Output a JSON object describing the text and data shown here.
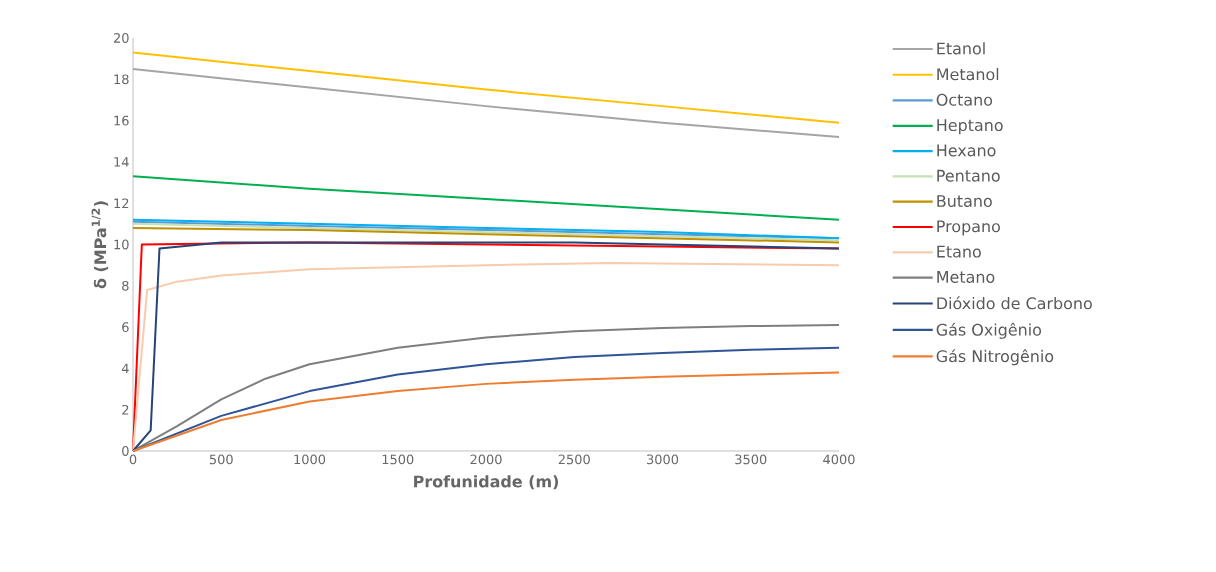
{
  "chart_data": {
    "type": "line",
    "xlabel": "Profunidade (m)",
    "ylabel": "δ (MPa$^{1/2}$)",
    "xlim": [
      0,
      4000
    ],
    "xticks": [
      0,
      500,
      1000,
      1500,
      2000,
      2500,
      3000,
      3500,
      4000
    ],
    "ylim": [
      0,
      20
    ],
    "yticks": [
      0,
      2,
      4,
      6,
      8,
      10,
      12,
      14,
      16,
      18,
      20
    ],
    "grid": false,
    "legend": "right",
    "marker": "none",
    "line_style": "solid",
    "series": [
      {
        "name": "Etanol",
        "color": "#a5a5a5",
        "x": [
          0,
          1000,
          2000,
          3000,
          4000
        ],
        "values": [
          18.5,
          17.6,
          16.7,
          15.9,
          15.2
        ]
      },
      {
        "name": "Metanol",
        "color": "#ffc000",
        "x": [
          0,
          1000,
          2000,
          3000,
          4000
        ],
        "values": [
          19.3,
          18.4,
          17.5,
          16.7,
          15.9
        ]
      },
      {
        "name": "Octano",
        "color": "#5b9bd5",
        "x": [
          0,
          1000,
          2000,
          3000,
          4000
        ],
        "values": [
          11.1,
          10.9,
          10.7,
          10.5,
          10.3
        ]
      },
      {
        "name": "Heptano",
        "color": "#00b050",
        "x": [
          0,
          1000,
          2000,
          3000,
          4000
        ],
        "values": [
          13.3,
          12.7,
          12.2,
          11.7,
          11.2
        ]
      },
      {
        "name": "Hexano",
        "color": "#00b0f0",
        "x": [
          0,
          1000,
          2000,
          3000,
          4000
        ],
        "values": [
          11.2,
          11.0,
          10.8,
          10.6,
          10.3
        ]
      },
      {
        "name": "Pentano",
        "color": "#c5e0b4",
        "x": [
          0,
          1000,
          2000,
          3000,
          4000
        ],
        "values": [
          11.0,
          10.8,
          10.6,
          10.4,
          10.2
        ]
      },
      {
        "name": "Butano",
        "color": "#bf9000",
        "x": [
          0,
          1000,
          2000,
          3000,
          4000
        ],
        "values": [
          10.8,
          10.7,
          10.5,
          10.3,
          10.1
        ]
      },
      {
        "name": "Propano",
        "color": "#ff0000",
        "x": [
          0,
          50,
          1000,
          2000,
          3000,
          4000
        ],
        "values": [
          0,
          10.0,
          10.1,
          10.0,
          9.9,
          9.8
        ]
      },
      {
        "name": "Etano",
        "color": "#f8cbad",
        "x": [
          0,
          80,
          250,
          500,
          1000,
          1500,
          2000,
          2700,
          4000
        ],
        "values": [
          0,
          7.8,
          8.2,
          8.5,
          8.8,
          8.9,
          9.0,
          9.1,
          9.0
        ]
      },
      {
        "name": "Metano",
        "color": "#7f7f7f",
        "x": [
          0,
          250,
          500,
          750,
          1000,
          1500,
          2000,
          2500,
          3000,
          3500,
          4000
        ],
        "values": [
          0,
          1.2,
          2.5,
          3.5,
          4.2,
          5.0,
          5.5,
          5.8,
          5.95,
          6.05,
          6.1
        ]
      },
      {
        "name": "Dióxido de Carbono",
        "color": "#264478",
        "x": [
          0,
          100,
          150,
          500,
          1500,
          2500,
          4000
        ],
        "values": [
          0,
          1.0,
          9.8,
          10.1,
          10.1,
          10.1,
          9.8
        ]
      },
      {
        "name": "Gás Oxigênio",
        "color": "#2f5597",
        "x": [
          0,
          500,
          1000,
          1500,
          2000,
          2500,
          3000,
          3500,
          4000
        ],
        "values": [
          0,
          1.7,
          2.9,
          3.7,
          4.2,
          4.55,
          4.75,
          4.9,
          5.0
        ]
      },
      {
        "name": "Gás Nitrogênio",
        "color": "#ed7d31",
        "x": [
          0,
          500,
          1000,
          1500,
          2000,
          2500,
          3000,
          3500,
          4000
        ],
        "values": [
          0,
          1.5,
          2.4,
          2.9,
          3.25,
          3.45,
          3.6,
          3.7,
          3.8
        ]
      }
    ]
  }
}
